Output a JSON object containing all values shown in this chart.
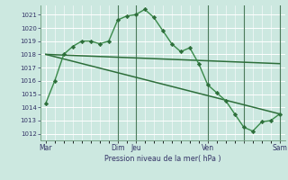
{
  "title": "Pression niveau de la mer( hPa )",
  "bg_color": "#cce8e0",
  "grid_color": "#ffffff",
  "line_color_dark": "#2d6e3a",
  "line_color_mid": "#3a8a4a",
  "ylim": [
    1011.5,
    1021.7
  ],
  "yticks": [
    1012,
    1013,
    1014,
    1015,
    1016,
    1017,
    1018,
    1019,
    1020,
    1021
  ],
  "series1_x": [
    0,
    0.5,
    1,
    1.5,
    2,
    2.5,
    3,
    3.5,
    4,
    4.5,
    5,
    5.5,
    6,
    6.5,
    7,
    7.5,
    8,
    8.5,
    9,
    9.5,
    10,
    10.5,
    11,
    11.5,
    12,
    12.5,
    13
  ],
  "series1_y": [
    1014.3,
    1016.0,
    1018.0,
    1018.6,
    1019.0,
    1019.0,
    1018.8,
    1019.0,
    1020.6,
    1020.9,
    1021.0,
    1021.4,
    1020.8,
    1019.8,
    1018.8,
    1018.2,
    1018.5,
    1017.3,
    1015.7,
    1015.1,
    1014.5,
    1013.5,
    1012.5,
    1012.2,
    1012.9,
    1013.0,
    1013.5
  ],
  "series2_x": [
    0,
    13
  ],
  "series2_y": [
    1018.0,
    1017.3
  ],
  "series3_x": [
    0,
    13
  ],
  "series3_y": [
    1018.0,
    1013.5
  ],
  "xtick_positions": [
    0,
    4,
    5,
    9,
    11,
    13
  ],
  "xtick_labels": [
    "Mar",
    "Dim",
    "Jeu",
    "Ven",
    "",
    "Sam"
  ],
  "day_lines": [
    4,
    5,
    9,
    11,
    13
  ]
}
